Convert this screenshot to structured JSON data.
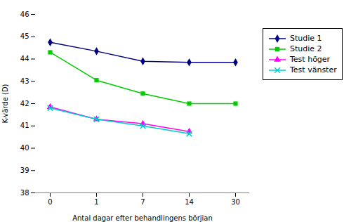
{
  "chart_data": {
    "type": "line",
    "xlabel": "Antal dagar efter behandlingens börjian",
    "ylabel": "K-värde (D)",
    "categories": [
      "0",
      "1",
      "7",
      "14",
      "30"
    ],
    "ylim": [
      38,
      46
    ],
    "yticks": [
      38,
      39,
      40,
      41,
      42,
      43,
      44,
      45,
      46
    ],
    "grid": false,
    "legend": "right",
    "background_color": "#ffffff",
    "series": [
      {
        "name": "Studie 1",
        "color": "#000080",
        "marker": "diamond",
        "line_style": "solid",
        "values": [
          44.75,
          44.35,
          43.9,
          43.85,
          43.85
        ]
      },
      {
        "name": "Studie 2",
        "color": "#00cc00",
        "marker": "square",
        "line_style": "solid",
        "values": [
          44.3,
          43.05,
          42.45,
          42.0,
          42.0
        ]
      },
      {
        "name": "Test höger",
        "color": "#ff00ff",
        "marker": "triangle",
        "line_style": "solid",
        "values": [
          41.85,
          41.3,
          41.1,
          40.75,
          null
        ]
      },
      {
        "name": "Test vänster",
        "color": "#00cccc",
        "marker": "x",
        "line_style": "solid",
        "values": [
          41.8,
          41.3,
          41.0,
          40.65,
          null
        ]
      }
    ]
  }
}
